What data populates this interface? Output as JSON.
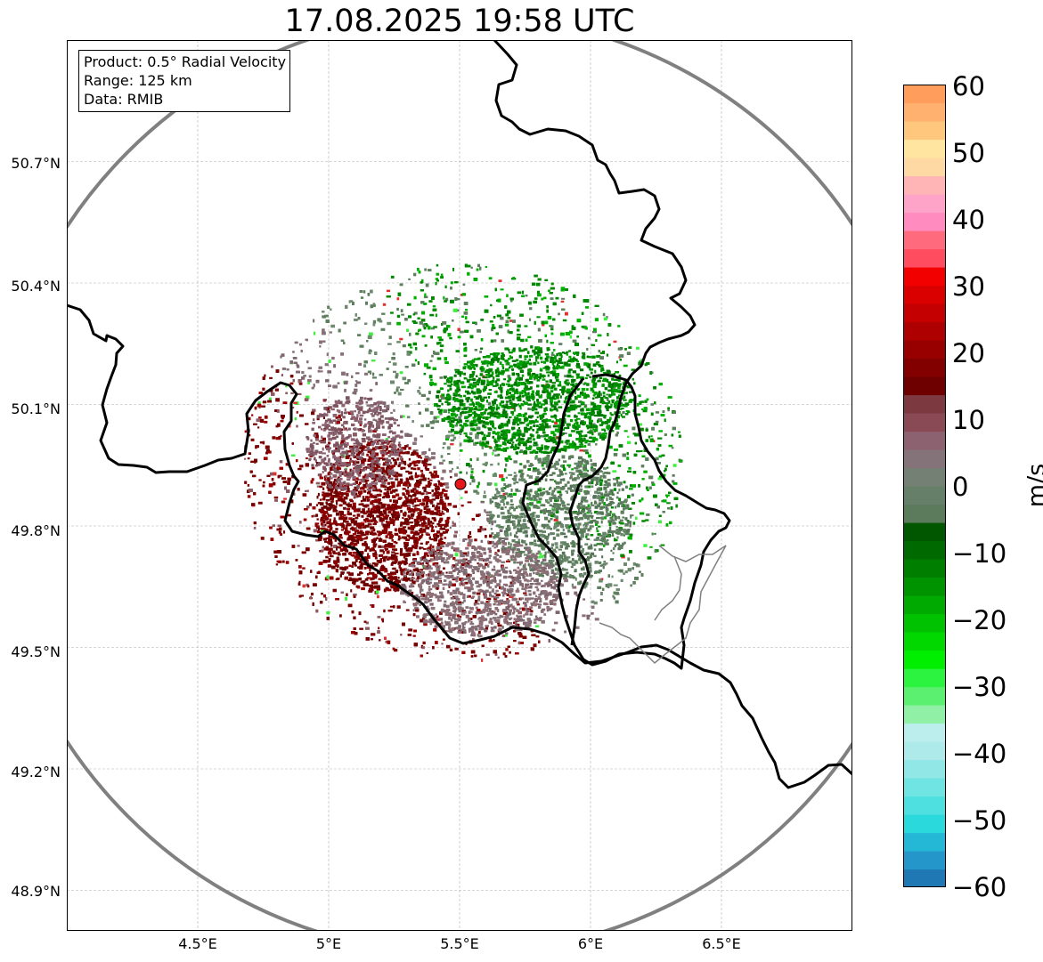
{
  "title": "17.08.2025 19:58 UTC",
  "info_box": {
    "lines": [
      "Product: 0.5° Radial Velocity",
      "Range: 125 km",
      "Data: RMIB"
    ]
  },
  "map": {
    "lon_range": [
      4.0,
      7.0
    ],
    "lat_range": [
      48.8,
      51.0
    ],
    "lat_ticks": [
      "50.7°N",
      "50.4°N",
      "50.1°N",
      "49.8°N",
      "49.5°N",
      "49.2°N",
      "48.9°N"
    ],
    "lon_ticks": [
      "4.5°E",
      "5°E",
      "5.5°E",
      "6°E",
      "6.5°E"
    ],
    "radar_site": {
      "lon": 5.505,
      "lat": 49.915
    },
    "range_ring_km": 125,
    "grid": true,
    "border_color": "#000000",
    "ring_color": "#808080",
    "radar_marker_color": "#e4181b"
  },
  "colorbar": {
    "label": "m/s",
    "min": -60,
    "max": 60,
    "ticks": [
      "60",
      "50",
      "40",
      "30",
      "20",
      "10",
      "0",
      "−10",
      "−20",
      "−30",
      "−40",
      "−50",
      "−60"
    ],
    "stops": [
      "#1f78b4",
      "#2596c9",
      "#25b7d6",
      "#2ad9dc",
      "#4ee0e0",
      "#70e3e3",
      "#91e6e6",
      "#afeaea",
      "#bdeeee",
      "#8ff0a6",
      "#5bf070",
      "#2cf33f",
      "#00ee00",
      "#00d800",
      "#00c200",
      "#00aa00",
      "#009300",
      "#007e00",
      "#006a00",
      "#005700",
      "#5c7a5c",
      "#657f68",
      "#738073",
      "#847378",
      "#8d6270",
      "#8a4a55",
      "#7c3a40",
      "#6e0000",
      "#820000",
      "#980000",
      "#ae0000",
      "#c40000",
      "#da0000",
      "#f20000",
      "#ff4d5f",
      "#ff6a7c",
      "#ff8bbf",
      "#ffa4c9",
      "#ffb5b5",
      "#ffd9a3",
      "#ffe5a0",
      "#ffc77e",
      "#ffb270",
      "#ff9e5c"
    ]
  }
}
